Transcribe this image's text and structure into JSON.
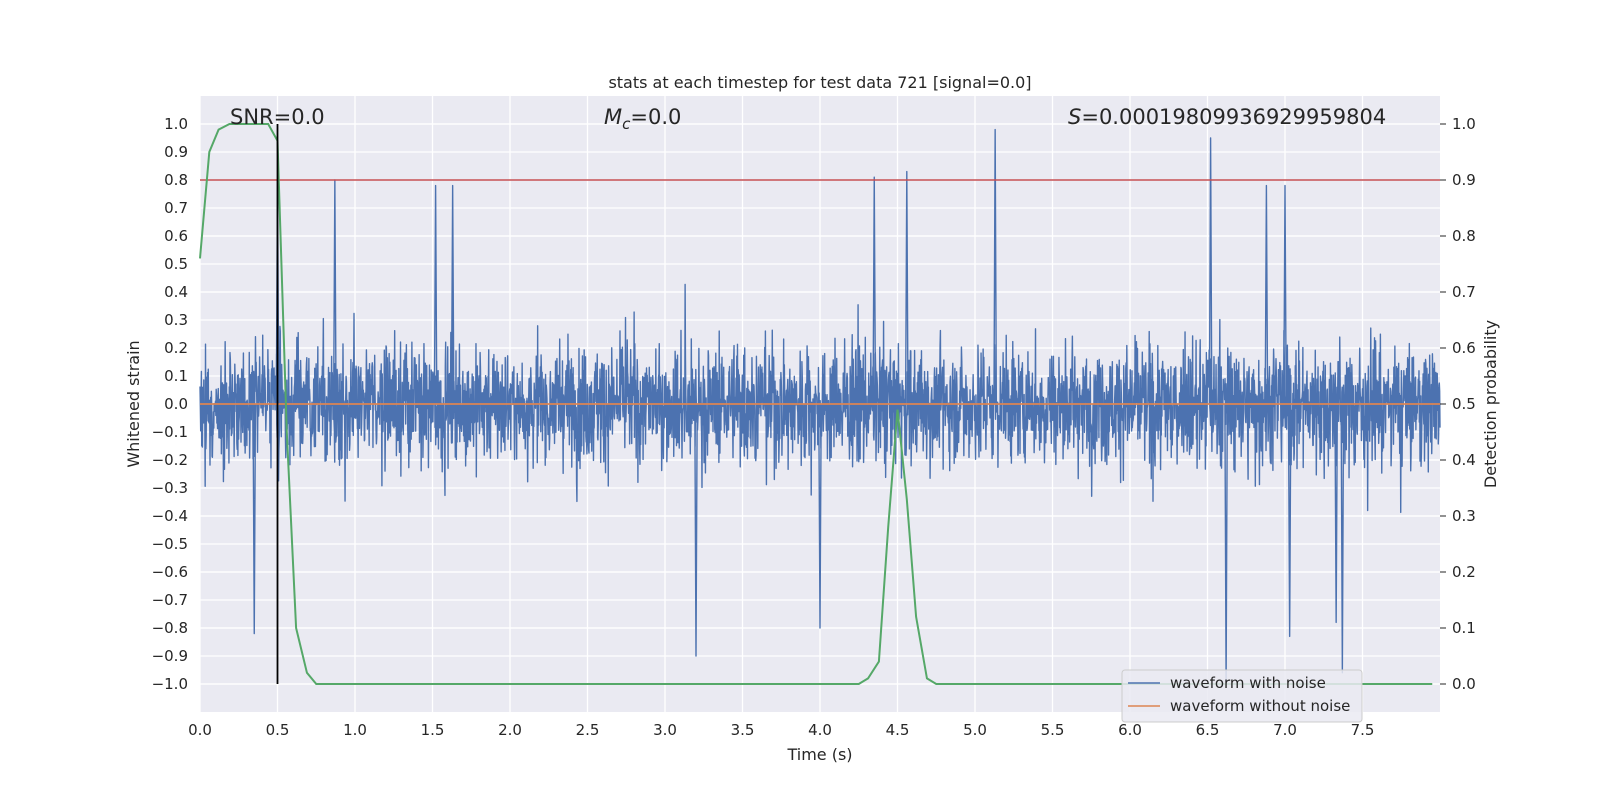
{
  "chart_data": {
    "type": "line",
    "title": "stats at each timestep for test data 721 [signal=0.0]",
    "xlabel": "Time (s)",
    "ylabel": "Whitened strain",
    "ylabel_right": "Detection probability",
    "xlim": [
      0.0,
      8.0
    ],
    "ylim": [
      -1.1,
      1.1
    ],
    "ylim_right": [
      -0.05,
      1.05
    ],
    "x_ticks": [
      "0.0",
      "0.5",
      "1.0",
      "1.5",
      "2.0",
      "2.5",
      "3.0",
      "3.5",
      "4.0",
      "4.5",
      "5.0",
      "5.5",
      "6.0",
      "6.5",
      "7.0",
      "7.5"
    ],
    "y_ticks": [
      "1.0",
      "0.9",
      "0.8",
      "0.7",
      "0.6",
      "0.5",
      "0.4",
      "0.3",
      "0.2",
      "0.1",
      "0.0",
      "−0.1",
      "−0.2",
      "−0.3",
      "−0.4",
      "−0.5",
      "−0.6",
      "−0.7",
      "−0.8",
      "−0.9",
      "−1.0"
    ],
    "y_ticks_right": [
      "1.0",
      "0.9",
      "0.8",
      "0.7",
      "0.6",
      "0.5",
      "0.4",
      "0.3",
      "0.2",
      "0.1",
      "0.0"
    ],
    "grid": true,
    "legend_position": "lower-right",
    "annotations": {
      "snr": "SNR=0.0",
      "mc_symbol": "M",
      "mc_sub": "c",
      "mc_value": "=0.0",
      "s_symbol": "S",
      "s_value": "=0.00019809936929959804"
    },
    "threshold_line": {
      "axis": "right",
      "y": 0.9,
      "color": "#c44e52"
    },
    "marker_line": {
      "x": 0.5,
      "y_range": [
        -1.0,
        1.0
      ],
      "color": "#000000"
    },
    "series": [
      {
        "name": "waveform with noise",
        "axis": "left",
        "color": "#4c72b0",
        "kind": "noise",
        "x_range": [
          0.0,
          8.0
        ],
        "typical_amplitude": 0.35,
        "peaks": [
          {
            "x": 0.5,
            "y": 0.8
          },
          {
            "x": 0.87,
            "y": 0.8
          },
          {
            "x": 1.52,
            "y": 0.78
          },
          {
            "x": 1.63,
            "y": 0.78
          },
          {
            "x": 4.35,
            "y": 0.81
          },
          {
            "x": 4.56,
            "y": 0.83
          },
          {
            "x": 5.13,
            "y": 0.98
          },
          {
            "x": 6.52,
            "y": 0.95
          },
          {
            "x": 6.88,
            "y": 0.78
          },
          {
            "x": 7.0,
            "y": 0.78
          },
          {
            "x": 7.33,
            "y": -0.78
          },
          {
            "x": 3.2,
            "y": -0.9
          },
          {
            "x": 0.35,
            "y": -0.82
          },
          {
            "x": 4.0,
            "y": -0.8
          },
          {
            "x": 6.62,
            "y": -1.0
          },
          {
            "x": 7.37,
            "y": -0.96
          },
          {
            "x": 7.03,
            "y": -0.83
          }
        ]
      },
      {
        "name": "waveform without noise",
        "axis": "left",
        "color": "#dd8452",
        "x": [
          0.0,
          8.0
        ],
        "y": [
          0.0,
          0.0
        ]
      },
      {
        "name": "",
        "axis": "right",
        "color": "#55a868",
        "x": [
          0.0,
          0.06,
          0.12,
          0.19,
          0.25,
          0.31,
          0.38,
          0.44,
          0.5,
          0.56,
          0.62,
          0.69,
          0.75,
          4.2,
          4.25,
          4.31,
          4.38,
          4.44,
          4.5,
          4.56,
          4.62,
          4.69,
          4.75,
          5.0,
          7.95
        ],
        "y": [
          0.76,
          0.95,
          0.99,
          1.0,
          1.0,
          1.0,
          1.0,
          1.0,
          0.97,
          0.45,
          0.1,
          0.02,
          0.0,
          0.0,
          0.0,
          0.01,
          0.04,
          0.28,
          0.49,
          0.33,
          0.12,
          0.01,
          0.0,
          0.0,
          0.0
        ]
      }
    ]
  }
}
